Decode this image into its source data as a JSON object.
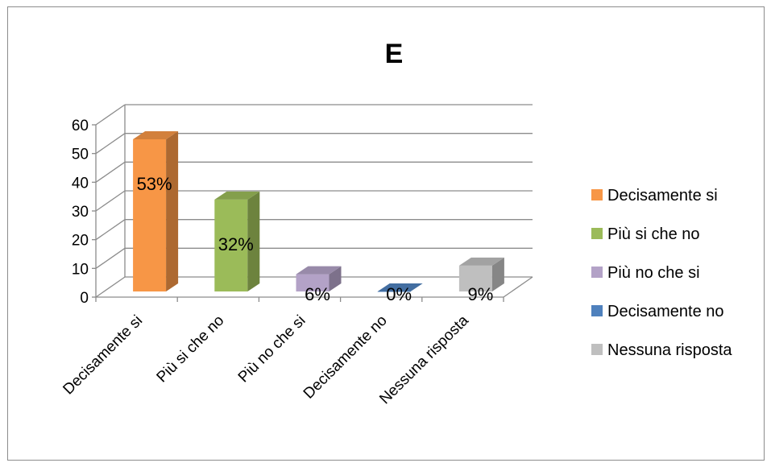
{
  "chart_data": {
    "type": "bar",
    "title": "E",
    "categories": [
      "Decisamente si",
      "Più si che no",
      "Più no che si",
      "Decisamente no",
      "Nessuna risposta"
    ],
    "values": [
      53,
      32,
      6,
      0,
      9
    ],
    "data_labels": [
      "53%",
      "32%",
      "6%",
      "0%",
      "9%"
    ],
    "ylim": [
      0,
      60
    ],
    "yticks": [
      "0",
      "10",
      "20",
      "30",
      "40",
      "50",
      "60"
    ],
    "grid": true,
    "style_3d": true,
    "legend": {
      "position": "right",
      "entries": [
        {
          "label": "Decisamente si",
          "color": "#F79646"
        },
        {
          "label": "Più si che no",
          "color": "#9BBB59"
        },
        {
          "label": "Più no che si",
          "color": "#B3A2C7"
        },
        {
          "label": "Decisamente no",
          "color": "#4F81BD"
        },
        {
          "label": "Nessuna risposta",
          "color": "#BFBFBF"
        }
      ]
    },
    "colors": [
      "#F79646",
      "#9BBB59",
      "#B3A2C7",
      "#4F81BD",
      "#BFBFBF"
    ]
  }
}
